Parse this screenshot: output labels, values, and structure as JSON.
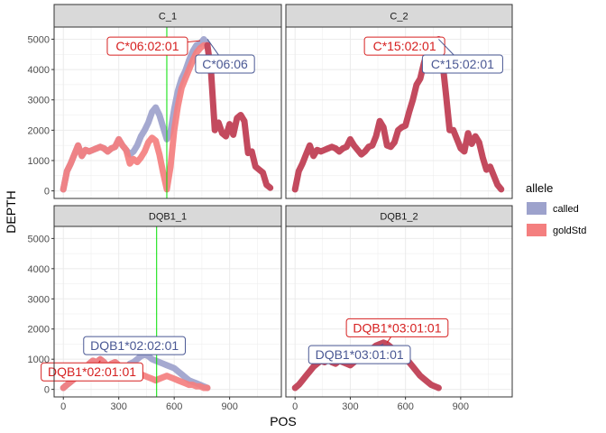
{
  "chart_data": {
    "type": "line",
    "xlabel": "POS",
    "ylabel": "DEPTH",
    "xlim": [
      -50,
      1180
    ],
    "ylim": [
      -250,
      5400
    ],
    "x_ticks": [
      0,
      300,
      600,
      900
    ],
    "y_ticks": [
      0,
      1000,
      2000,
      3000,
      4000,
      5000
    ],
    "grid": true,
    "legend": {
      "title": "allele",
      "position": "right",
      "entries": [
        {
          "key": "called",
          "label": "called",
          "color": "#9da2cc"
        },
        {
          "key": "goldStd",
          "label": "goldStd",
          "color": "#f47f7f"
        }
      ]
    },
    "overlap_color": "#c34a5e",
    "vline_color": "#00e000",
    "panels": [
      {
        "strip": "C_1",
        "vline": 560,
        "series": {
          "called": {
            "x": [
              0,
              20,
              40,
              60,
              80,
              100,
              120,
              140,
              160,
              180,
              200,
              220,
              240,
              260,
              280,
              300,
              320,
              340,
              360,
              380,
              400,
              420,
              440,
              460,
              480,
              500,
              520,
              540,
              560,
              580,
              600,
              620,
              640,
              660,
              680,
              700,
              720,
              740,
              760,
              780
            ],
            "y": [
              50,
              650,
              900,
              1200,
              1500,
              1150,
              1350,
              1300,
              1350,
              1400,
              1450,
              1400,
              1300,
              1400,
              1450,
              1700,
              1500,
              1350,
              1200,
              1300,
              1500,
              1800,
              2000,
              2250,
              2600,
              2750,
              2500,
              2100,
              1700,
              1950,
              2700,
              3300,
              3700,
              3950,
              4300,
              4600,
              4800,
              4850,
              5000,
              4850
            ]
          },
          "goldStd": {
            "x": [
              0,
              20,
              40,
              60,
              80,
              100,
              120,
              140,
              160,
              180,
              200,
              220,
              240,
              260,
              280,
              300,
              320,
              340,
              360,
              380,
              400,
              420,
              440,
              460,
              480,
              500,
              520,
              540,
              560,
              580,
              600,
              620,
              640,
              660,
              680,
              700,
              720,
              740,
              760,
              780
            ],
            "y": [
              50,
              650,
              900,
              1200,
              1500,
              1150,
              1350,
              1300,
              1350,
              1400,
              1450,
              1400,
              1300,
              1400,
              1450,
              1700,
              1500,
              1350,
              900,
              1050,
              950,
              1100,
              1300,
              1600,
              1750,
              1650,
              1200,
              600,
              50,
              800,
              2000,
              2800,
              3400,
              3700,
              4000,
              4300,
              4550,
              4700,
              4800,
              4800
            ]
          },
          "shared": {
            "x": [
              780,
              800,
              820,
              840,
              860,
              880,
              900,
              920,
              940,
              960,
              980,
              1000,
              1020,
              1040,
              1060,
              1080,
              1100,
              1120
            ],
            "y": [
              4800,
              3900,
              2000,
              2250,
              1900,
              1800,
              2200,
              1850,
              2400,
              2500,
              2300,
              1250,
              1300,
              800,
              700,
              600,
              200,
              100
            ]
          }
        },
        "annotations": [
          {
            "text": "C*06:02:01",
            "allele": "goldStd",
            "x": 455,
            "y": 4770,
            "px": 740,
            "py": 4950
          },
          {
            "text": "C*06:06",
            "allele": "called",
            "x": 875,
            "y": 4180,
            "px": 780,
            "py": 5000
          }
        ]
      },
      {
        "strip": "C_2",
        "vline": null,
        "series": {
          "shared": {
            "x": [
              0,
              20,
              40,
              60,
              80,
              100,
              120,
              140,
              160,
              180,
              200,
              220,
              240,
              260,
              280,
              300,
              320,
              340,
              360,
              380,
              400,
              420,
              440,
              460,
              480,
              500,
              520,
              540,
              560,
              580,
              600,
              620,
              640,
              660,
              680,
              700,
              720,
              740,
              760,
              780,
              800,
              820,
              840,
              860,
              880,
              900,
              920,
              940,
              960,
              980,
              1000,
              1020,
              1040,
              1060,
              1080,
              1100,
              1120
            ],
            "y": [
              50,
              650,
              900,
              1200,
              1500,
              1150,
              1350,
              1300,
              1350,
              1400,
              1450,
              1400,
              1300,
              1400,
              1450,
              1700,
              1500,
              1350,
              1200,
              1300,
              1450,
              1500,
              1800,
              2300,
              2100,
              1500,
              1450,
              1600,
              2000,
              2100,
              2150,
              2600,
              3000,
              3500,
              3700,
              4200,
              4600,
              4800,
              4900,
              5000,
              4300,
              3200,
              2000,
              2000,
              1700,
              1400,
              1300,
              1900,
              1550,
              1800,
              1600,
              1100,
              700,
              800,
              500,
              200,
              50
            ]
          }
        },
        "annotations": [
          {
            "text": "C*15:02:01",
            "allele": "goldStd",
            "x": 595,
            "y": 4770,
            "px": 780,
            "py": 5000
          },
          {
            "text": "C*15:02:01",
            "allele": "called",
            "x": 910,
            "y": 4180,
            "px": 780,
            "py": 5000
          }
        ]
      },
      {
        "strip": "DQB1_1",
        "vline": 505,
        "series": {
          "called": {
            "x": [
              0,
              20,
              40,
              60,
              80,
              100,
              120,
              140,
              160,
              180,
              200,
              220,
              240,
              260,
              280,
              300,
              320,
              340,
              360,
              380,
              400,
              420,
              440,
              460,
              480,
              500,
              520,
              540,
              560,
              580,
              600,
              620,
              640,
              660,
              680,
              700,
              720,
              740,
              760,
              780
            ],
            "y": [
              50,
              150,
              250,
              350,
              450,
              550,
              700,
              850,
              950,
              900,
              1000,
              900,
              750,
              850,
              900,
              800,
              750,
              700,
              850,
              900,
              1000,
              1100,
              1150,
              1100,
              1000,
              950,
              900,
              850,
              800,
              750,
              700,
              600,
              500,
              400,
              300,
              250,
              200,
              150,
              100,
              50
            ]
          },
          "goldStd": {
            "x": [
              0,
              20,
              40,
              60,
              80,
              100,
              120,
              140,
              160,
              180,
              200,
              220,
              240,
              260,
              280,
              300,
              320,
              340,
              360,
              380,
              400,
              420,
              440,
              460,
              480,
              500,
              520,
              540,
              560,
              580,
              600,
              620,
              640,
              660,
              680,
              700,
              720,
              740,
              760,
              780
            ],
            "y": [
              50,
              150,
              250,
              350,
              450,
              550,
              700,
              850,
              950,
              900,
              1000,
              900,
              750,
              850,
              900,
              800,
              750,
              700,
              650,
              600,
              550,
              500,
              450,
              400,
              350,
              300,
              350,
              400,
              450,
              400,
              350,
              300,
              250,
              200,
              150,
              150,
              100,
              100,
              50,
              50
            ]
          }
        },
        "annotations": [
          {
            "text": "DQB1*02:02:01",
            "allele": "called",
            "x": 385,
            "y": 1450,
            "px": 460,
            "py": 1150
          },
          {
            "text": "DQB1*02:01:01",
            "allele": "goldStd",
            "x": 155,
            "y": 580,
            "px": 200,
            "py": 950
          }
        ]
      },
      {
        "strip": "DQB1_2",
        "vline": null,
        "series": {
          "shared": {
            "x": [
              0,
              20,
              40,
              60,
              80,
              100,
              120,
              140,
              160,
              180,
              200,
              220,
              240,
              260,
              280,
              300,
              320,
              340,
              360,
              380,
              400,
              420,
              440,
              460,
              480,
              500,
              520,
              540,
              560,
              580,
              600,
              620,
              640,
              660,
              680,
              700,
              720,
              740,
              760,
              780
            ],
            "y": [
              50,
              150,
              300,
              450,
              600,
              750,
              850,
              950,
              900,
              1000,
              900,
              850,
              950,
              900,
              850,
              800,
              900,
              1000,
              1150,
              1200,
              1300,
              1350,
              1450,
              1500,
              1550,
              1500,
              1400,
              1300,
              1200,
              1100,
              1000,
              900,
              750,
              600,
              450,
              350,
              250,
              150,
              100,
              50
            ]
          }
        },
        "annotations": [
          {
            "text": "DQB1*03:01:01",
            "allele": "goldStd",
            "x": 555,
            "y": 2040,
            "px": 500,
            "py": 1550
          },
          {
            "text": "DQB1*03:01:01",
            "allele": "called",
            "x": 350,
            "y": 1150,
            "px": 480,
            "py": 1500
          }
        ]
      }
    ]
  }
}
